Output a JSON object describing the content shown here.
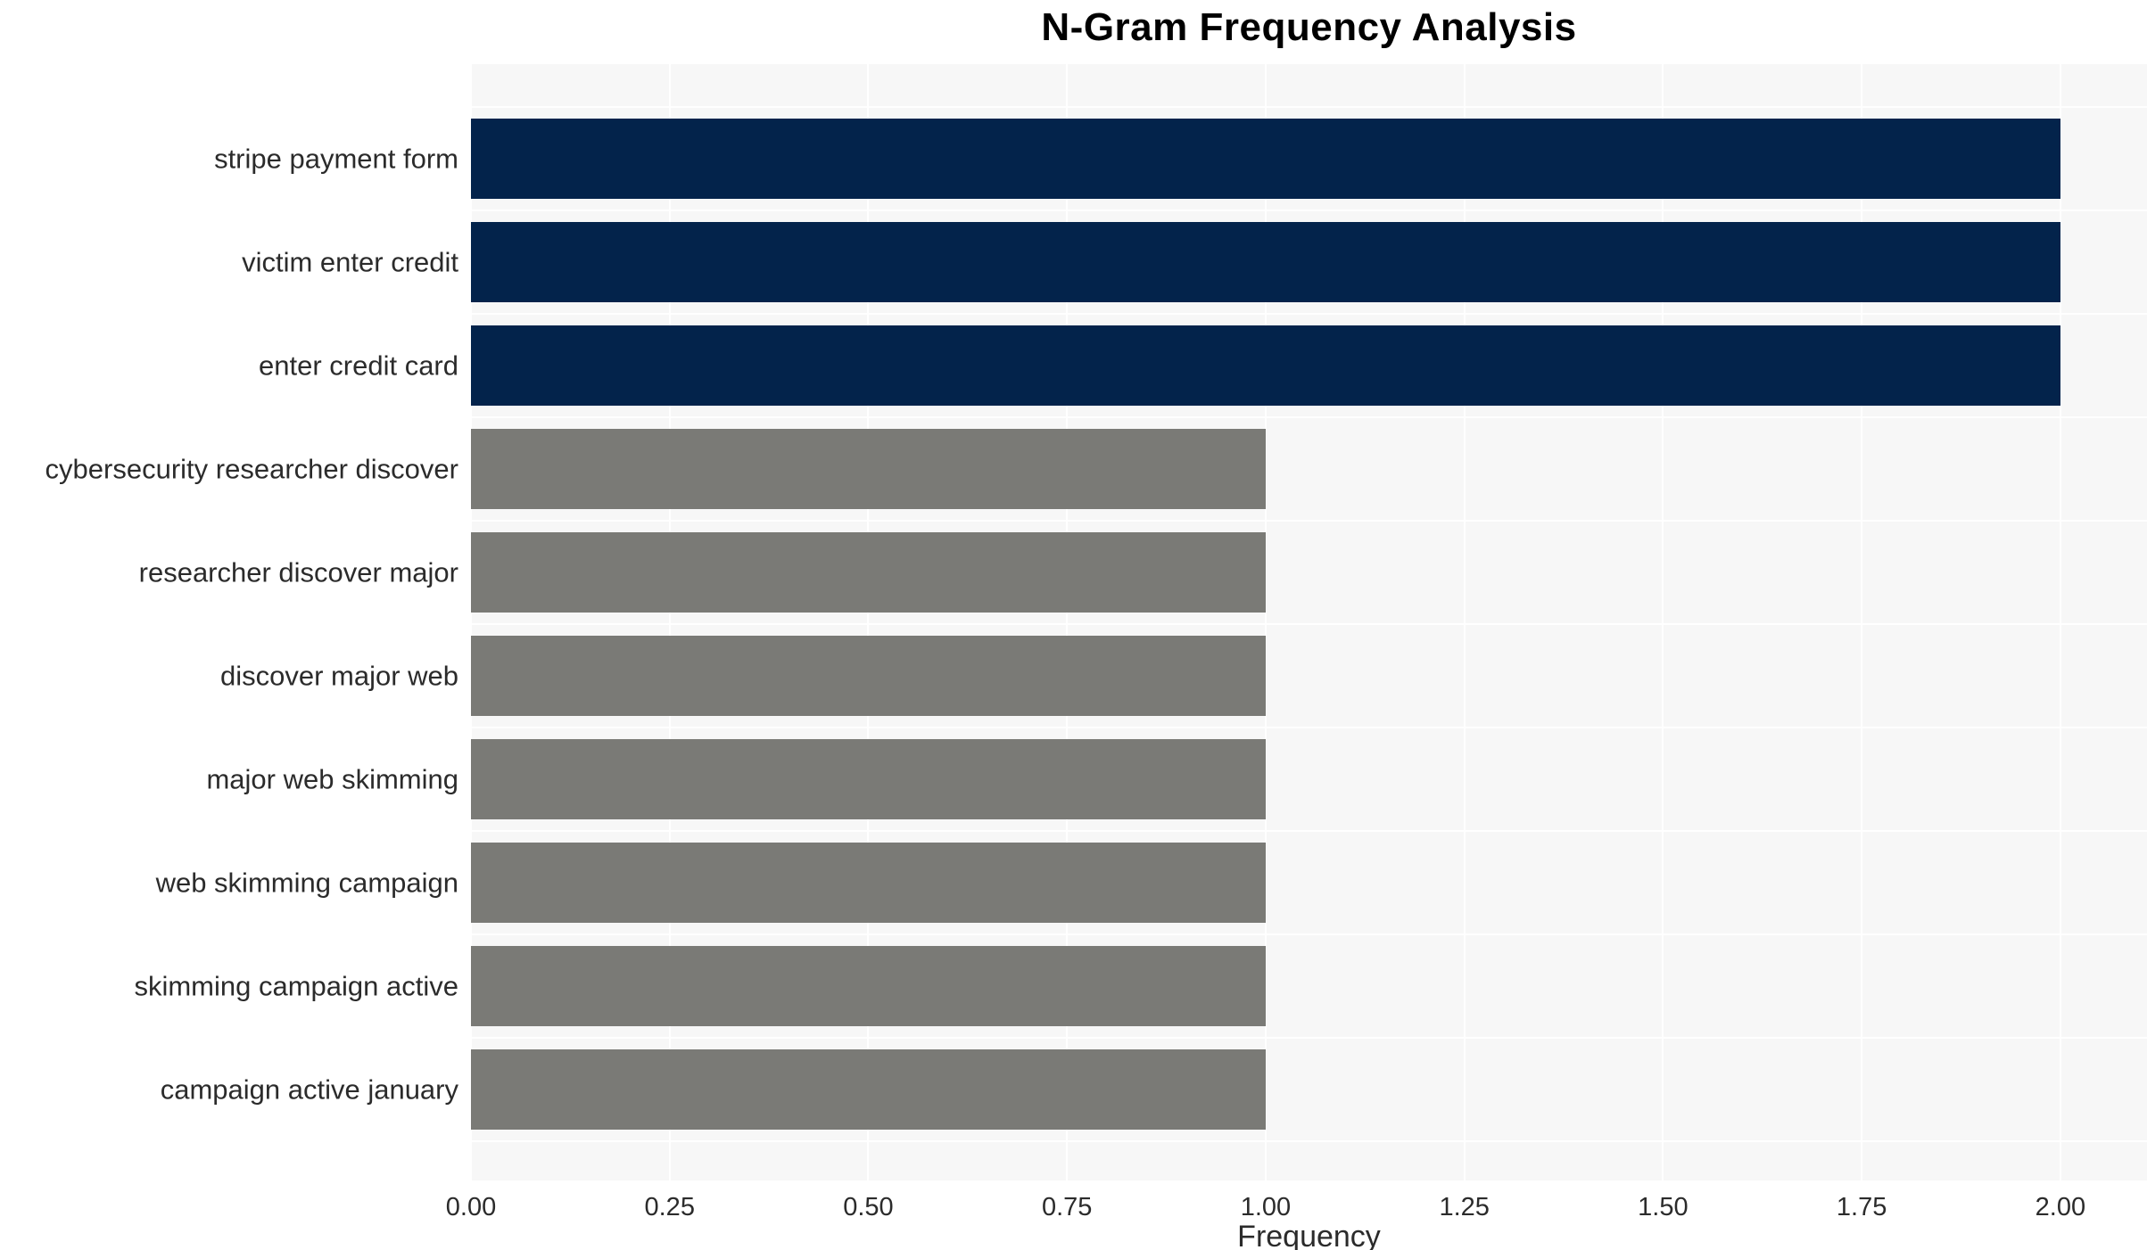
{
  "chart_data": {
    "type": "bar",
    "orientation": "horizontal",
    "title": "N-Gram Frequency Analysis",
    "xlabel": "Frequency",
    "ylabel": "",
    "categories": [
      "stripe payment form",
      "victim enter credit",
      "enter credit card",
      "cybersecurity researcher discover",
      "researcher discover major",
      "discover major web",
      "major web skimming",
      "web skimming campaign",
      "skimming campaign active",
      "campaign active january"
    ],
    "values": [
      2,
      2,
      2,
      1,
      1,
      1,
      1,
      1,
      1,
      1
    ],
    "bar_colors": [
      "#03234b",
      "#03234b",
      "#03234b",
      "#7a7a76",
      "#7a7a76",
      "#7a7a76",
      "#7a7a76",
      "#7a7a76",
      "#7a7a76",
      "#7a7a76"
    ],
    "x_tick_labels": [
      "0.00",
      "0.25",
      "0.50",
      "0.75",
      "1.00",
      "1.25",
      "1.50",
      "1.75",
      "2.00"
    ],
    "x_tick_values": [
      0,
      0.25,
      0.5,
      0.75,
      1.0,
      1.25,
      1.5,
      1.75,
      2.0
    ],
    "xlim": [
      0,
      2.109
    ],
    "grid": "white major vertical lines and white minor horizontal lines on light gray panel",
    "legend": false
  },
  "colors": {
    "high_freq_bar": "#03234b",
    "low_freq_bar": "#7a7a76",
    "panel_background": "#f7f7f7",
    "grid_line": "#ffffff",
    "tick_text": "#2b2b2b",
    "title_text": "#000000"
  }
}
